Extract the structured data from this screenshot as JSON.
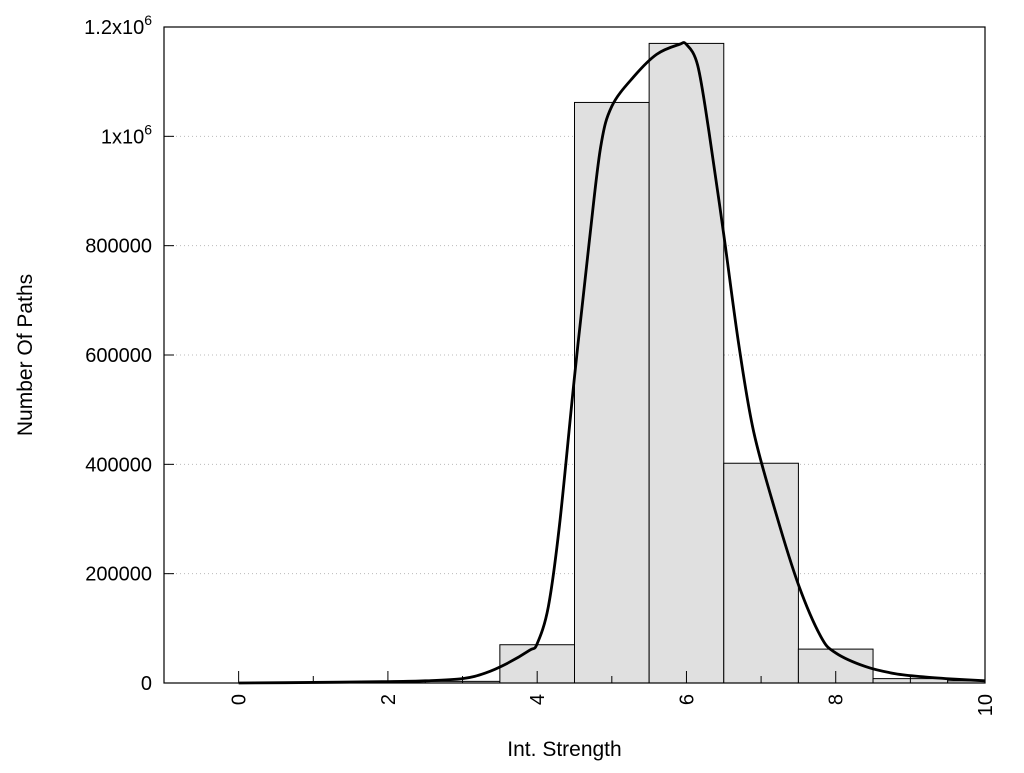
{
  "chart_data": {
    "type": "bar",
    "title": "",
    "xlabel": "Int. Strength",
    "ylabel": "Number Of Paths",
    "xlim": [
      -1,
      10
    ],
    "ylim": [
      0,
      1200000
    ],
    "grid": {
      "y": true,
      "x": false,
      "style": "dotted"
    },
    "x_ticks": [
      {
        "value": 0,
        "label": "0"
      },
      {
        "value": 2,
        "label": "2"
      },
      {
        "value": 4,
        "label": "4"
      },
      {
        "value": 6,
        "label": "6"
      },
      {
        "value": 8,
        "label": "8"
      },
      {
        "value": 10,
        "label": "10"
      }
    ],
    "x_minor_ticks": [
      1,
      3,
      5,
      7,
      9
    ],
    "y_ticks": [
      {
        "value": 0,
        "label": "0"
      },
      {
        "value": 200000,
        "label": "200000"
      },
      {
        "value": 400000,
        "label": "400000"
      },
      {
        "value": 600000,
        "label": "600000"
      },
      {
        "value": 800000,
        "label": "800000"
      },
      {
        "value": 1000000,
        "label": "1x10",
        "sup": "6"
      },
      {
        "value": 1200000,
        "label": "1.2x10",
        "sup": "6"
      }
    ],
    "bar_width": 1,
    "bars": [
      {
        "x": 0,
        "value": 0
      },
      {
        "x": 1,
        "value": 0
      },
      {
        "x": 2,
        "value": 0
      },
      {
        "x": 3,
        "value": 3000
      },
      {
        "x": 4,
        "value": 70000
      },
      {
        "x": 5,
        "value": 1062000
      },
      {
        "x": 6,
        "value": 1170000
      },
      {
        "x": 7,
        "value": 402000
      },
      {
        "x": 8,
        "value": 62000
      },
      {
        "x": 9,
        "value": 8000
      },
      {
        "x": 10,
        "value": 4000
      }
    ],
    "bar_fill": "#e0e0e0",
    "bar_stroke": "#000000",
    "curve": {
      "x": [
        0,
        1,
        2,
        2.5,
        3,
        3.3,
        3.6,
        3.9,
        4.0,
        4.15,
        4.3,
        4.5,
        4.7,
        4.85,
        5.0,
        5.3,
        5.6,
        5.9,
        6.0,
        6.15,
        6.3,
        6.5,
        6.7,
        6.9,
        7.2,
        7.5,
        7.8,
        8.0,
        8.4,
        8.8,
        9.2,
        9.6,
        10.0
      ],
      "y": [
        0,
        1000,
        2500,
        4000,
        8000,
        18000,
        36000,
        60000,
        72000,
        140000,
        290000,
        560000,
        810000,
        980000,
        1055000,
        1110000,
        1150000,
        1168000,
        1168000,
        1130000,
        1010000,
        820000,
        620000,
        460000,
        310000,
        180000,
        85000,
        55000,
        30000,
        17000,
        11000,
        7000,
        4000
      ]
    },
    "curve_color": "#000000"
  }
}
